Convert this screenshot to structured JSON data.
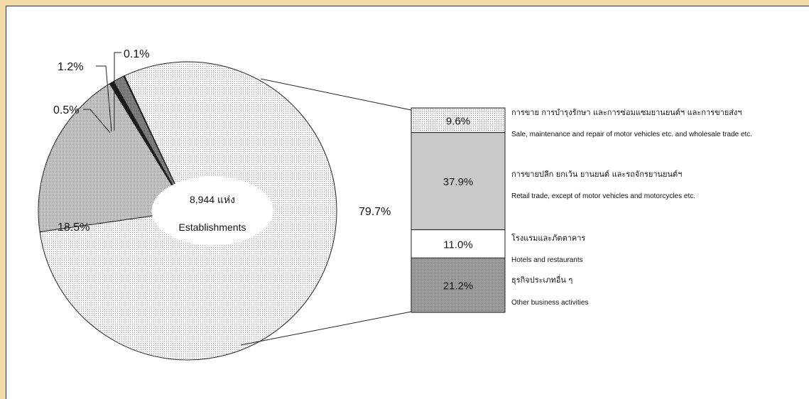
{
  "chart_data": {
    "type": "pie",
    "center_label": {
      "count": "8,944 แห่ง",
      "unit": "Establishments"
    },
    "slices": [
      {
        "label": "79.7%",
        "value": 79.7,
        "fill": "#f0f0f0"
      },
      {
        "label": "18.5%",
        "value": 18.5,
        "fill": "#bdbdbd"
      },
      {
        "label": "0.5%",
        "value": 0.5,
        "fill": "#1a1a1a"
      },
      {
        "label": "1.2%",
        "value": 1.2,
        "fill": "#4a4a4a"
      },
      {
        "label": "0.1%",
        "value": 0.1,
        "fill": "#000000"
      }
    ],
    "breakdown_bar": {
      "of_slice": "79.7%",
      "segments": [
        {
          "label": "9.6%",
          "value": 9.6,
          "fill": "#ececec",
          "name_th": "การขาย การบำรุงรักษา และการซ่อมแซมยานยนต์ฯ และการขายส่งฯ",
          "name_en": "Sale, maintenance and repair of motor vehicles etc. and wholesale trade etc."
        },
        {
          "label": "37.9%",
          "value": 37.9,
          "fill": "#c9c9c9",
          "name_th": "การขายปลีก ยกเว้น ยานยนต์ และรถจักรยานยนต์ฯ",
          "name_en": "Retail trade, except of motor vehicles and motorcycles etc."
        },
        {
          "label": "11.0%",
          "value": 11.0,
          "fill": "#ffffff",
          "name_th": "โรงแรมและภัตตาคาร",
          "name_en": "Hotels and restaurants"
        },
        {
          "label": "21.2%",
          "value": 21.2,
          "fill": "#a6a6a6",
          "name_th": "ธุรกิจประเภทอื่น ๆ",
          "name_en": "Other business activities"
        }
      ]
    }
  }
}
